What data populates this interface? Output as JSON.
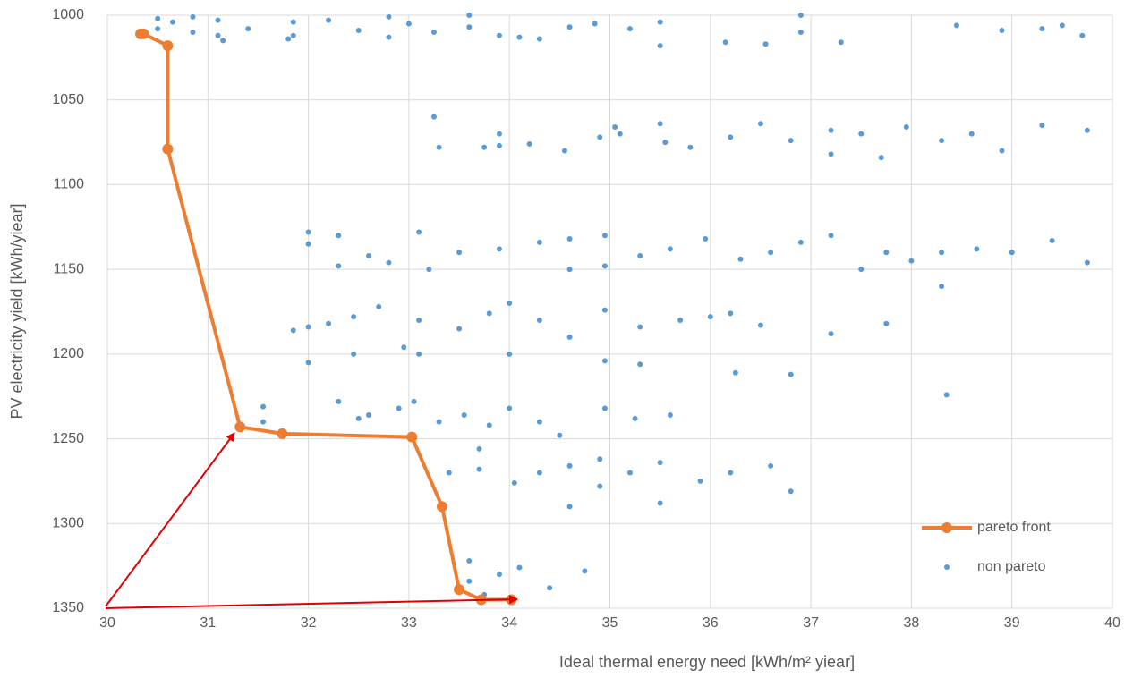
{
  "chart_data": {
    "type": "scatter",
    "x_label": "Ideal thermal energy need [kWh/m² yiear]",
    "y_label": "PV electricity yield [kWh/yiear]",
    "xlim": [
      30,
      40
    ],
    "xticks": [
      30,
      31,
      32,
      33,
      34,
      35,
      36,
      37,
      38,
      39,
      40
    ],
    "ylim": [
      1000,
      1350
    ],
    "yticks": [
      1000,
      1050,
      1100,
      1150,
      1200,
      1250,
      1300,
      1350
    ],
    "y_reversed": true,
    "grid": true,
    "legend": "lower right",
    "series": [
      {
        "name": "pareto front",
        "color": "#ed7d31",
        "type": "line",
        "x": [
          30.33,
          30.36,
          30.6,
          30.6,
          31.32,
          31.74,
          33.03,
          33.33,
          33.5,
          33.72,
          34.02
        ],
        "values": [
          1011,
          1011,
          1018,
          1079,
          1243,
          1247,
          1249,
          1290,
          1339,
          1345,
          1345
        ]
      },
      {
        "name": "non pareto",
        "color": "#5b9bd5",
        "type": "scatter",
        "x": [
          30.5,
          30.5,
          30.65,
          30.85,
          30.85,
          31.1,
          31.1,
          31.15,
          31.4,
          31.8,
          31.85,
          31.85,
          32.2,
          32.5,
          32.8,
          32.8,
          33.0,
          33.25,
          33.6,
          33.6,
          33.9,
          34.1,
          34.3,
          34.6,
          34.85,
          35.2,
          35.5,
          35.5,
          36.15,
          36.55,
          36.9,
          36.9,
          37.3,
          38.45,
          38.9,
          39.3,
          39.5,
          39.7,
          33.25,
          33.3,
          33.75,
          33.9,
          33.9,
          34.2,
          34.55,
          34.9,
          35.05,
          35.1,
          35.5,
          35.55,
          35.8,
          36.2,
          36.5,
          36.8,
          37.2,
          37.2,
          37.5,
          37.7,
          37.95,
          38.3,
          38.6,
          38.9,
          39.3,
          39.75,
          32.0,
          32.0,
          32.3,
          32.3,
          32.6,
          32.8,
          33.1,
          33.2,
          33.5,
          33.9,
          34.3,
          34.6,
          34.6,
          34.95,
          34.95,
          35.3,
          35.6,
          35.95,
          36.3,
          36.6,
          36.9,
          37.2,
          37.5,
          37.75,
          38.0,
          38.3,
          38.3,
          38.65,
          39.0,
          39.4,
          39.75,
          31.85,
          32.0,
          32.0,
          32.2,
          32.45,
          32.45,
          32.7,
          32.95,
          33.1,
          33.1,
          33.5,
          33.8,
          34.0,
          34.0,
          34.3,
          34.6,
          34.95,
          34.95,
          35.3,
          35.3,
          35.7,
          36.0,
          36.2,
          36.25,
          36.5,
          36.8,
          37.2,
          37.75,
          31.55,
          31.55,
          32.3,
          32.5,
          32.6,
          32.9,
          33.05,
          33.3,
          33.55,
          33.8,
          34.0,
          34.3,
          34.5,
          34.95,
          35.25,
          35.6,
          38.35,
          33.4,
          33.7,
          33.7,
          34.05,
          34.3,
          34.6,
          34.6,
          34.9,
          34.9,
          35.2,
          35.5,
          35.5,
          35.9,
          36.2,
          36.6,
          36.8,
          33.6,
          33.6,
          33.75,
          33.9,
          34.1,
          34.4,
          34.75
        ],
        "values": [
          1002,
          1008,
          1004,
          1001,
          1010,
          1003,
          1012,
          1015,
          1008,
          1014,
          1004,
          1012,
          1003,
          1009,
          1001,
          1013,
          1005,
          1010,
          1000,
          1007,
          1012,
          1013,
          1014,
          1007,
          1005,
          1008,
          1004,
          1018,
          1016,
          1017,
          1000,
          1010,
          1016,
          1006,
          1009,
          1008,
          1006,
          1012,
          1060,
          1078,
          1078,
          1070,
          1077,
          1076,
          1080,
          1072,
          1066,
          1070,
          1064,
          1075,
          1078,
          1072,
          1064,
          1074,
          1068,
          1082,
          1070,
          1084,
          1066,
          1074,
          1070,
          1080,
          1065,
          1068,
          1128,
          1135,
          1130,
          1148,
          1142,
          1146,
          1128,
          1150,
          1140,
          1138,
          1134,
          1132,
          1150,
          1130,
          1148,
          1142,
          1138,
          1132,
          1144,
          1140,
          1134,
          1130,
          1150,
          1140,
          1145,
          1140,
          1160,
          1138,
          1140,
          1133,
          1146,
          1186,
          1184,
          1205,
          1182,
          1178,
          1200,
          1172,
          1196,
          1180,
          1200,
          1185,
          1176,
          1170,
          1200,
          1180,
          1190,
          1174,
          1204,
          1184,
          1206,
          1180,
          1178,
          1176,
          1211,
          1183,
          1212,
          1188,
          1182,
          1231,
          1240,
          1228,
          1238,
          1236,
          1232,
          1228,
          1240,
          1236,
          1242,
          1232,
          1240,
          1248,
          1232,
          1238,
          1236,
          1224,
          1270,
          1256,
          1268,
          1276,
          1270,
          1266,
          1290,
          1262,
          1278,
          1270,
          1264,
          1288,
          1275,
          1270,
          1266,
          1281,
          1322,
          1334,
          1342,
          1330,
          1326,
          1338,
          1328
        ]
      }
    ]
  }
}
